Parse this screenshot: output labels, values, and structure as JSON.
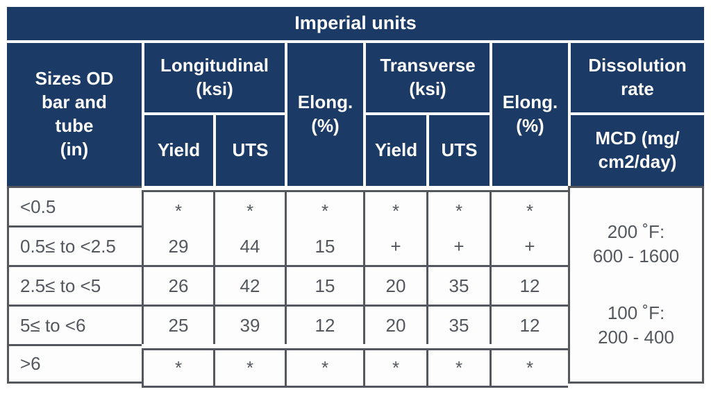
{
  "colors": {
    "navy": "#1b3a66",
    "grid": "#54585e",
    "text": "#54585e",
    "page_bg": "#ffffff"
  },
  "table": {
    "title": "Imperial units",
    "header": {
      "sizes": "Sizes OD\nbar and\ntube\n(in)",
      "longitudinal": "Longitudinal\n(ksi)",
      "elong_longitudinal": "Elong.\n(%)",
      "transverse": "Transverse\n(ksi)",
      "elong_transverse": "Elong.\n(%)",
      "dissolution": "Dissolution\nrate",
      "yield_longitudinal": "Yield",
      "uts_longitudinal": "UTS",
      "yield_transverse": "Yield",
      "uts_transverse": "UTS",
      "mcd": "MCD (mg/\ncm2/day)"
    },
    "rows": [
      {
        "size": "<0.5",
        "values": [
          "*",
          "*",
          "*",
          "*",
          "*",
          "*"
        ]
      },
      {
        "size": "0.5≤ to <2.5",
        "values": [
          "29",
          "44",
          "15",
          "+",
          "+",
          "+"
        ]
      },
      {
        "size": "2.5≤ to <5",
        "values": [
          "26",
          "42",
          "15",
          "20",
          "35",
          "12"
        ]
      },
      {
        "size": "5≤ to <6",
        "values": [
          "25",
          "39",
          "12",
          "20",
          "35",
          "12"
        ]
      },
      {
        "size": ">6",
        "values": [
          "*",
          "*",
          "*",
          "*",
          "*",
          "*"
        ]
      }
    ],
    "dissolution_rate": {
      "block1": "200 ˚F:\n600 - 1600",
      "block2": "100 ˚F:\n200 - 400"
    }
  },
  "chart_data": {
    "type": "table",
    "title": "Imperial units",
    "columns": [
      "Sizes OD bar and tube (in)",
      "Longitudinal Yield (ksi)",
      "Longitudinal UTS (ksi)",
      "Elong. (%)",
      "Transverse Yield (ksi)",
      "Transverse UTS (ksi)",
      "Elong. (%)",
      "Dissolution rate MCD (mg/cm2/day)"
    ],
    "rows": [
      [
        "<0.5",
        "*",
        "*",
        "*",
        "*",
        "*",
        "*",
        "200 ˚F: 600 - 1600; 100 ˚F: 200 - 400"
      ],
      [
        "0.5≤ to <2.5",
        "29",
        "44",
        "15",
        "+",
        "+",
        "+",
        "200 ˚F: 600 - 1600; 100 ˚F: 200 - 400"
      ],
      [
        "2.5≤ to <5",
        "26",
        "42",
        "15",
        "20",
        "35",
        "12",
        "200 ˚F: 600 - 1600; 100 ˚F: 200 - 400"
      ],
      [
        "5≤ to <6",
        "25",
        "39",
        "12",
        "20",
        "35",
        "12",
        "200 ˚F: 600 - 1600; 100 ˚F: 200 - 400"
      ],
      [
        ">6",
        "*",
        "*",
        "*",
        "*",
        "*",
        "*",
        "200 ˚F: 600 - 1600; 100 ˚F: 200 - 400"
      ]
    ]
  }
}
